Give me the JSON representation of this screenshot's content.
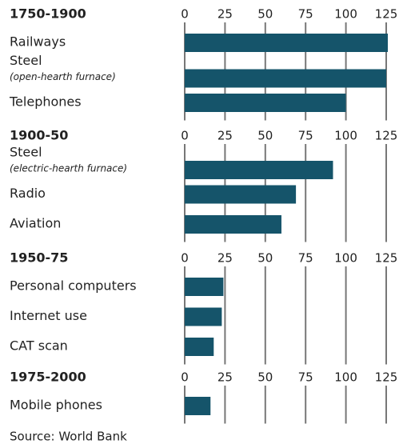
{
  "chart_data": [
    {
      "type": "hbar",
      "title": "1750-1900",
      "categories": [
        "Railways",
        "Steel",
        "Telephones"
      ],
      "notes": [
        null,
        "(open-hearth furnace)",
        null
      ],
      "values": [
        126,
        125,
        100
      ],
      "color": "#15546a",
      "xlim": [
        0,
        125
      ],
      "xticks": [
        0,
        25,
        50,
        75,
        100,
        125
      ],
      "grid": true
    },
    {
      "type": "hbar",
      "title": "1900-50",
      "categories": [
        "Steel",
        "Radio",
        "Aviation"
      ],
      "notes": [
        "(electric-hearth furnace)",
        null,
        null
      ],
      "values": [
        92,
        69,
        60
      ],
      "color": "#15546a",
      "xlim": [
        0,
        125
      ],
      "xticks": [
        0,
        25,
        50,
        75,
        100,
        125
      ],
      "grid": true
    },
    {
      "type": "hbar",
      "title": "1950-75",
      "categories": [
        "Personal computers",
        "Internet use",
        "CAT scan"
      ],
      "notes": [
        null,
        null,
        null
      ],
      "values": [
        24,
        23,
        18
      ],
      "color": "#15546a",
      "xlim": [
        0,
        125
      ],
      "xticks": [
        0,
        25,
        50,
        75,
        100,
        125
      ],
      "grid": true
    },
    {
      "type": "hbar",
      "title": "1975-2000",
      "categories": [
        "Mobile phones"
      ],
      "notes": [
        null
      ],
      "values": [
        16
      ],
      "color": "#15546a",
      "xlim": [
        0,
        125
      ],
      "xticks": [
        0,
        25,
        50,
        75,
        100,
        125
      ],
      "grid": true
    }
  ],
  "source": "Source: World Bank"
}
